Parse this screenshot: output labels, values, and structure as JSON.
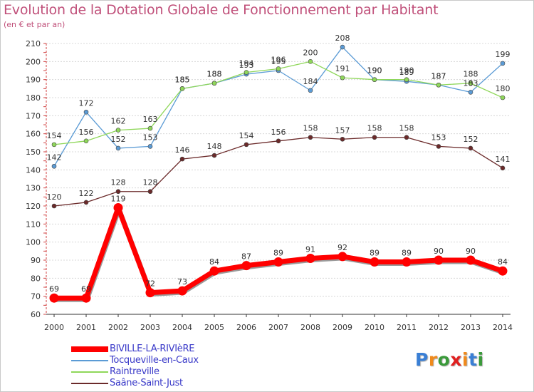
{
  "chart_data": {
    "type": "line",
    "title": "Evolution de la Dotation Globale de Fonctionnement par Habitant",
    "subtitle": "(en € et par an)",
    "xlabel": "",
    "ylabel": "",
    "ylim": [
      60,
      210
    ],
    "yticks": [
      60,
      70,
      80,
      90,
      100,
      110,
      120,
      130,
      140,
      150,
      160,
      170,
      180,
      190,
      200,
      210
    ],
    "categories": [
      "2000",
      "2001",
      "2002",
      "2003",
      "2004",
      "2005",
      "2006",
      "2007",
      "2008",
      "2009",
      "2010",
      "2011",
      "2012",
      "2013",
      "2014"
    ],
    "grid": true,
    "legend_position": "bottom-left",
    "series": [
      {
        "name": "Tocqueville-en-Caux",
        "color": "#5b9bd5",
        "values": [
          142,
          172,
          152,
          153,
          185,
          188,
          193,
          195,
          184,
          208,
          190,
          189,
          187,
          183,
          199
        ]
      },
      {
        "name": "Raintreville",
        "color": "#8fd75a",
        "values": [
          154,
          156,
          162,
          163,
          185,
          188,
          194,
          196,
          200,
          191,
          190,
          190,
          187,
          188,
          180
        ]
      },
      {
        "name": "Saâne-Saint-Just",
        "color": "#6b2a2a",
        "values": [
          120,
          122,
          128,
          128,
          146,
          148,
          154,
          156,
          158,
          157,
          158,
          158,
          153,
          152,
          141
        ]
      },
      {
        "name": "BIVILLE-LA-RIVIèRE",
        "color": "#ff0000",
        "values": [
          69,
          69,
          119,
          72,
          73,
          84,
          87,
          89,
          91,
          92,
          89,
          89,
          90,
          90,
          84
        ]
      }
    ],
    "legend_order": [
      "BIVILLE-LA-RIVIèRE",
      "Tocqueville-en-Caux",
      "Raintreville",
      "Saâne-Saint-Just"
    ]
  },
  "logo": {
    "letters": [
      "P",
      "r",
      "o",
      "x",
      "i",
      "t",
      "i"
    ],
    "colors": [
      "#3a7fd5",
      "#f08a1c",
      "#3a9a3a",
      "#e02020",
      "#f08a1c",
      "#3a7fd5",
      "#3a9a3a"
    ]
  }
}
